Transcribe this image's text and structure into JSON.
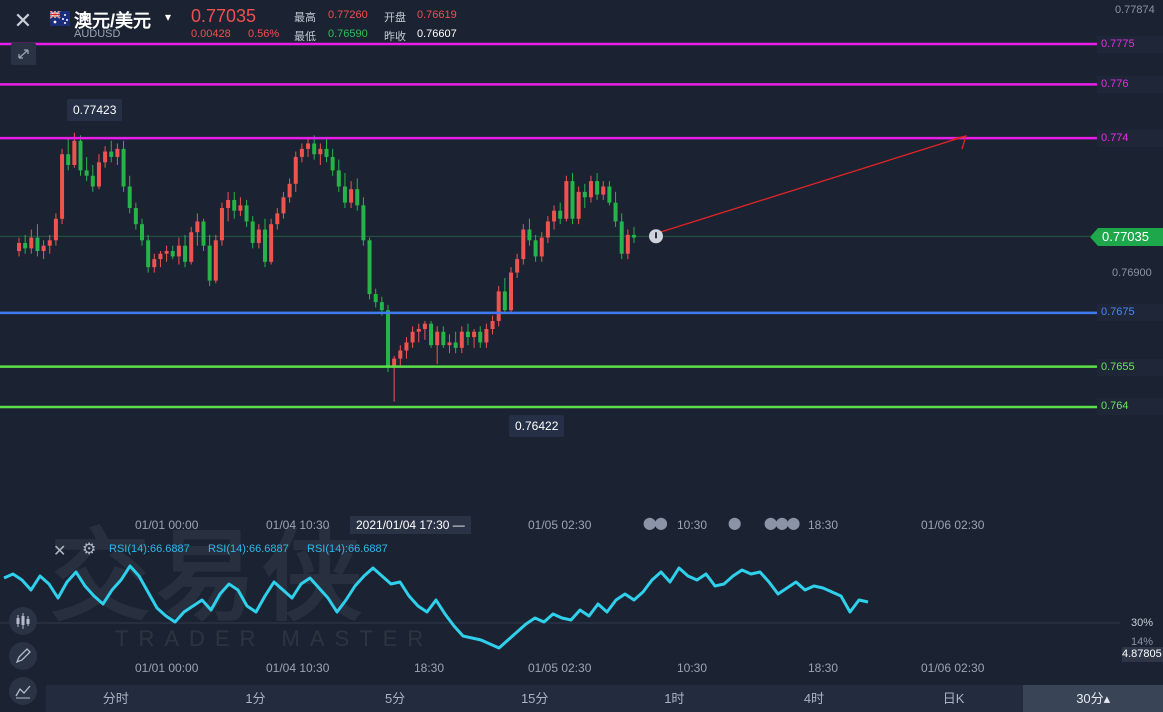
{
  "header": {
    "close_icon": "close-icon",
    "flag_icon": "australia-flag-icon",
    "symbol_name": "澳元/美元",
    "symbol_code": "AUDUSD",
    "caret": "▾",
    "last_price": "0.77035",
    "change": "0.00428",
    "change_pct": "0.56%",
    "quote": {
      "high_label": "最高",
      "high_value": "0.77260",
      "open_label": "开盘",
      "open_value": "0.76619",
      "low_label": "最低",
      "low_value": "0.76590",
      "prev_close_label": "昨收",
      "prev_close_value": "0.76607"
    }
  },
  "colors": {
    "bg": "#1b2332",
    "up": "#ef5350",
    "down": "#26b34a",
    "magenta_line": "#e81ee8",
    "blue_line": "#3f7bf0",
    "green_line": "#5ce04a",
    "rsi_line": "#2fd0ec"
  },
  "price_axis": {
    "top_label": "0.77874",
    "mid_label": "0.76900",
    "current_price_tag": "0.77035"
  },
  "levels": [
    {
      "price": "0.7775",
      "color": "#e81ee8"
    },
    {
      "price": "0.776",
      "color": "#e81ee8"
    },
    {
      "price": "0.774",
      "color": "#e81ee8"
    },
    {
      "price": "0.7675",
      "color": "#3f7bf0"
    },
    {
      "price": "0.7655",
      "color": "#5ce04a"
    },
    {
      "price": "0.764",
      "color": "#5ce04a"
    }
  ],
  "callouts": {
    "high": "0.77423",
    "low": "0.76422"
  },
  "time_axis": {
    "labels": [
      "01/01 00:00",
      "01/04 10:30",
      "01/05 02:30",
      "10:30",
      "18:30",
      "01/06 02:30"
    ],
    "crosshair_time": "2021/01/04 17:30 —"
  },
  "rsi": {
    "labels": [
      "RSI(14):66.6887",
      "RSI(14):66.6887",
      "RSI(14):66.6887"
    ],
    "level_30": "30%",
    "level_14": "14%",
    "value_tag": "4.87805",
    "time_labels": [
      "01/01 00:00",
      "01/04 10:30",
      "18:30",
      "01/05 02:30",
      "10:30",
      "18:30",
      "01/06 02:30"
    ]
  },
  "watermark": {
    "cn": "交易侠",
    "en": "TRADER MASTER"
  },
  "side_tools": [
    "candle-type-icon",
    "draw-pen-icon",
    "indicator-icon"
  ],
  "tabs": [
    {
      "label": "分时",
      "active": false
    },
    {
      "label": "1分",
      "active": false
    },
    {
      "label": "5分",
      "active": false
    },
    {
      "label": "15分",
      "active": false
    },
    {
      "label": "1时",
      "active": false
    },
    {
      "label": "4时",
      "active": false
    },
    {
      "label": "日K",
      "active": false
    },
    {
      "label": "30分▴",
      "active": true
    }
  ]
}
